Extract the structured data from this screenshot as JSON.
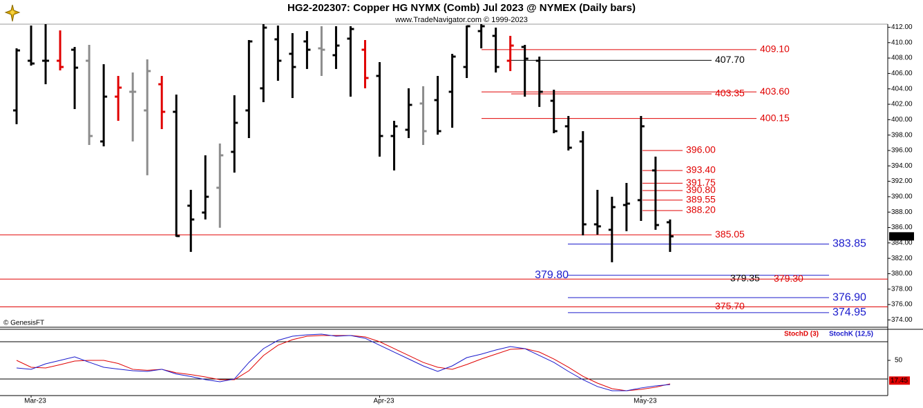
{
  "chart_data": [
    {
      "type": "ohlc",
      "title": "HG2-202307:  Copper HG NYMX (Comb) Jul 2023 @ NYMEX  (Daily bars)",
      "subtitle": "www.TradeNavigator.com © 1999-2023",
      "source": "© GenesisFT",
      "categories": [
        null,
        "Mar-23",
        null,
        null,
        null,
        null,
        null,
        null,
        null,
        null,
        null,
        null,
        null,
        null,
        null,
        null,
        null,
        null,
        null,
        null,
        null,
        null,
        null,
        null,
        null,
        "Apr-23",
        null,
        null,
        null,
        null,
        null,
        null,
        null,
        null,
        null,
        null,
        null,
        null,
        null,
        null,
        null,
        null,
        null,
        "May-23",
        null,
        null
      ],
      "open": [
        401.2,
        407.65,
        407.65,
        407.65,
        409.08,
        407.65,
        397.17,
        402.99,
        403.62,
        401.2,
        404.6,
        401.02,
        388.83,
        387.94,
        391.16,
        395.82,
        401.2,
        404.07,
        410.43,
        408.55,
        410.16,
        409.26,
        408.37,
        410.52,
        409.08,
        405.68,
        397.88,
        398.69,
        402.1,
        402.54,
        403.62,
        406.84,
        411.5,
        410.88,
        407.65,
        409.44,
        407.65,
        402.45,
        399.14,
        397.17,
        386.41,
        385.7,
        388.92,
        389.55,
        393.41,
        386.68
      ],
      "high": [
        409.26,
        412.22,
        412.4,
        411.59,
        409.44,
        409.71,
        407.2,
        405.68,
        406.13,
        407.83,
        405.68,
        403.26,
        390.89,
        395.37,
        396.9,
        403.17,
        410.34,
        412.4,
        412.22,
        411.24,
        411.5,
        412.13,
        412.13,
        412.13,
        410.34,
        407.47,
        399.85,
        404.07,
        404.34,
        405.68,
        408.55,
        412.22,
        412.4,
        411.95,
        410.88,
        409.71,
        408.19,
        403.89,
        400.48,
        398.51,
        390.89,
        389.99,
        391.79,
        400.48,
        395.2,
        387.04
      ],
      "low": [
        399.41,
        407.02,
        404.6,
        406.4,
        401.38,
        396.72,
        396.54,
        399.85,
        397.17,
        392.78,
        398.78,
        384.8,
        382.83,
        387.04,
        385.97,
        393.13,
        397.61,
        402.27,
        405.05,
        402.81,
        406.58,
        405.68,
        406.58,
        402.99,
        404.07,
        395.2,
        393.41,
        397.61,
        396.72,
        398.06,
        398.96,
        405.41,
        409.26,
        406.13,
        406.31,
        402.99,
        401.65,
        398.24,
        396.0,
        384.98,
        385.07,
        381.49,
        385.52,
        386.86,
        385.7,
        382.83
      ],
      "close": [
        408.99,
        407.29,
        407.65,
        406.84,
        406.75,
        397.88,
        402.99,
        404.16,
        403.62,
        406.31,
        401.02,
        384.89,
        387.04,
        389.99,
        395.37,
        399.59,
        410.16,
        411.95,
        407.65,
        406.84,
        409.08,
        409.08,
        409.62,
        411.77,
        405.41,
        397.88,
        399.14,
        401.92,
        398.51,
        398.51,
        408.19,
        412.13,
        412.13,
        406.84,
        409.62,
        407.92,
        403.62,
        398.51,
        396.36,
        386.41,
        386.15,
        388.65,
        389.1,
        399.14,
        386.32,
        384.85
      ],
      "colors": [
        "#000000",
        "#000000",
        "#000000",
        "#e00000",
        "#000000",
        "#8c8c8c",
        "#000000",
        "#e00000",
        "#8c8c8c",
        "#8c8c8c",
        "#e00000",
        "#000000",
        "#000000",
        "#000000",
        "#8c8c8c",
        "#000000",
        "#000000",
        "#000000",
        "#000000",
        "#000000",
        "#000000",
        "#8c8c8c",
        "#000000",
        "#000000",
        "#e00000",
        "#000000",
        "#000000",
        "#000000",
        "#8c8c8c",
        "#000000",
        "#000000",
        "#000000",
        "#000000",
        "#000000",
        "#e00000",
        "#000000",
        "#000000",
        "#000000",
        "#000000",
        "#000000",
        "#000000",
        "#000000",
        "#000000",
        "#000000",
        "#000000",
        "#000000"
      ],
      "ylim": [
        373.5,
        412.4
      ],
      "yticks": [
        {
          "value": 374,
          "label": "374.00"
        },
        {
          "value": 376,
          "label": "376.00"
        },
        {
          "value": 378,
          "label": "378.00"
        },
        {
          "value": 380,
          "label": "380.00"
        },
        {
          "value": 382,
          "label": "382.00"
        },
        {
          "value": 384,
          "label": "384.00"
        },
        {
          "value": 386,
          "label": "386.00"
        },
        {
          "value": 388,
          "label": "388.00"
        },
        {
          "value": 390,
          "label": "390.00"
        },
        {
          "value": 392,
          "label": "392.00"
        },
        {
          "value": 394,
          "label": "394.00"
        },
        {
          "value": 396,
          "label": "396.00"
        },
        {
          "value": 398,
          "label": "398.00"
        },
        {
          "value": 400,
          "label": "400.00"
        },
        {
          "value": 402,
          "label": "402.00"
        },
        {
          "value": 404,
          "label": "404.00"
        },
        {
          "value": 406,
          "label": "406.00"
        },
        {
          "value": 408,
          "label": "408.00"
        },
        {
          "value": 410,
          "label": "410.00"
        },
        {
          "value": 412,
          "label": "412.00"
        }
      ],
      "last_price": 384.85,
      "levels": [
        {
          "value": 409.1,
          "label": "409.10",
          "color": "#e00000"
        },
        {
          "value": 407.7,
          "label": "407.70",
          "color": "#000000"
        },
        {
          "value": 403.6,
          "label": "403.60",
          "color": "#e00000"
        },
        {
          "value": 403.35,
          "label": "403.35",
          "color": "#e00000"
        },
        {
          "value": 400.15,
          "label": "400.15",
          "color": "#e00000"
        },
        {
          "value": 396,
          "label": "396.00",
          "color": "#e00000"
        },
        {
          "value": 393.4,
          "label": "393.40",
          "color": "#e00000"
        },
        {
          "value": 391.75,
          "label": "391.75",
          "color": "#e00000"
        },
        {
          "value": 390.8,
          "label": "390.80",
          "color": "#e00000"
        },
        {
          "value": 389.55,
          "label": "389.55",
          "color": "#e00000"
        },
        {
          "value": 388.2,
          "label": "388.20",
          "color": "#e00000"
        },
        {
          "value": 385.05,
          "label": "385.05",
          "color": "#e00000"
        },
        {
          "value": 383.85,
          "label": "383.85",
          "color": "#1a1acc"
        },
        {
          "value": 379.8,
          "label": "379.80",
          "color": "#1a1acc"
        },
        {
          "value": 379.35,
          "label": "379.35",
          "color": "#000000"
        },
        {
          "value": 379.3,
          "label": "379.30",
          "color": "#e00000"
        },
        {
          "value": 376.9,
          "label": "376.90",
          "color": "#1a1acc"
        },
        {
          "value": 375.7,
          "label": "375.70",
          "color": "#e00000"
        },
        {
          "value": 374.95,
          "label": "374.95",
          "color": "#1a1acc"
        }
      ]
    },
    {
      "type": "line",
      "series": [
        {
          "name": "StochD (3)",
          "color": "#e00000",
          "values": [
            50,
            38.9,
            37.8,
            43,
            48.9,
            50,
            50,
            45,
            35.6,
            34,
            35.6,
            30,
            27,
            23.3,
            18.9,
            18.9,
            33.3,
            57.8,
            74.4,
            83.3,
            88.9,
            90,
            90,
            90,
            87.8,
            80,
            68.9,
            57.8,
            46.7,
            38.9,
            35.6,
            43.3,
            52.2,
            60,
            67.8,
            68.9,
            63.3,
            52.2,
            38.9,
            24.4,
            13.3,
            4.4,
            1.1,
            3.3,
            6.7,
            12.2
          ]
        },
        {
          "name": "StochK (12,5)",
          "color": "#1a1acc",
          "values": [
            37.8,
            35.6,
            44.4,
            50,
            55.6,
            47,
            38.9,
            36,
            33.3,
            32.2,
            35.6,
            28,
            24,
            19,
            15.6,
            20,
            46.7,
            68.9,
            82.2,
            88.9,
            91.1,
            92.2,
            88.9,
            90,
            85.6,
            74.4,
            63.3,
            52.2,
            41.1,
            32.2,
            41.1,
            54.4,
            60,
            66.7,
            72.2,
            68.9,
            57.8,
            46.7,
            32.2,
            18.9,
            7.8,
            1.1,
            1.1,
            5.6,
            8.9,
            11.1
          ]
        }
      ],
      "ylim": [
        -6.7,
        100
      ],
      "yticks": [
        50
      ],
      "bands": [
        20,
        80
      ],
      "last_value": 17.45
    }
  ]
}
